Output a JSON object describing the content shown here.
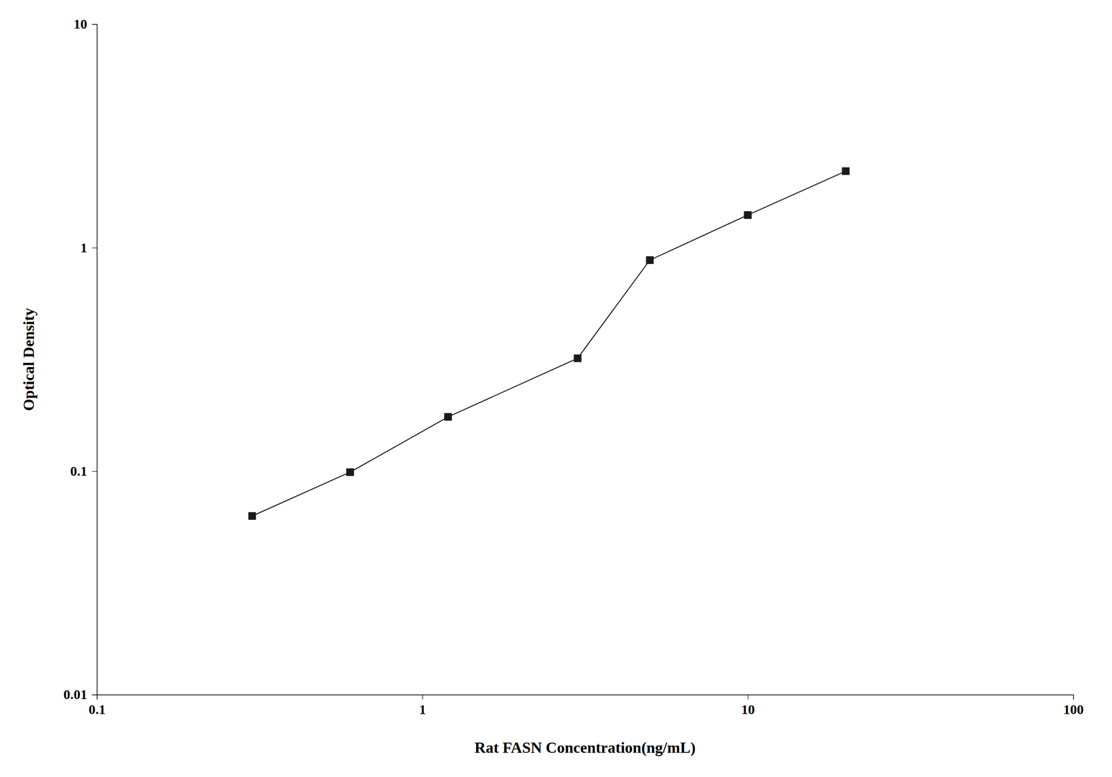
{
  "chart_data": {
    "type": "line",
    "x": [
      0.3,
      0.6,
      1.2,
      3.0,
      5.0,
      10.0,
      20.0
    ],
    "values": [
      0.063,
      0.099,
      0.175,
      0.32,
      0.88,
      1.4,
      2.2
    ],
    "xlabel": "Rat FASN Concentration(ng/mL)",
    "ylabel": "Optical Density",
    "xlim": [
      0.1,
      100
    ],
    "ylim": [
      0.01,
      10
    ],
    "xticks": [
      0.1,
      1,
      10,
      100
    ],
    "yticks": [
      0.01,
      0.1,
      1,
      10
    ],
    "log": true,
    "color": "#1a1a1a",
    "marker": "square",
    "grid": false
  }
}
